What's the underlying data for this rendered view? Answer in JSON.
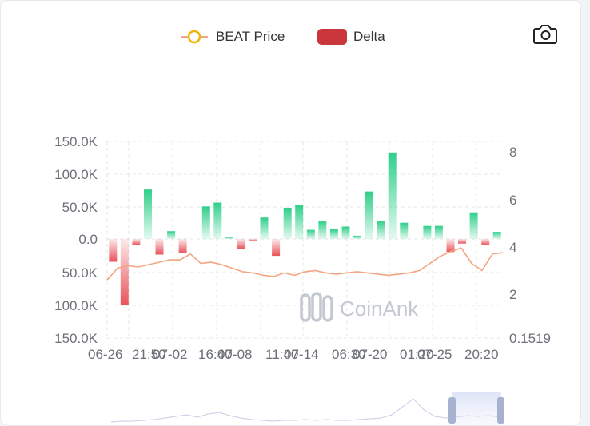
{
  "legend": {
    "price_label": "BEAT Price",
    "delta_label": "Delta"
  },
  "watermark": {
    "text": "CoinAnk"
  },
  "icons": {
    "camera": "camera-icon",
    "logo": "coinank-logo-icon"
  },
  "colors": {
    "price_line": "#f4a581",
    "price_marker": "#f0b400",
    "positive_bar": "#2fcf8a",
    "negative_bar": "#e8525a",
    "delta_legend": "#c9363c",
    "axis_text": "#6e7079",
    "grid": "#e3e6ea"
  },
  "chart_data": {
    "type": "bar",
    "title": "",
    "xlabel": "",
    "ylabel": "",
    "x_tick_labels": [
      "06-26",
      "21:50",
      "07-02",
      "16:40",
      "07-08",
      "11:40",
      "07-14",
      "06:30",
      "07-20",
      "01:20",
      "07-25",
      "20:20"
    ],
    "y_left": {
      "tick_labels": [
        "150.0K",
        "100.0K",
        "50.0K",
        "0.0",
        "50.0K",
        "100.0K",
        "150.0K"
      ],
      "ylim": [
        -150000,
        150000
      ]
    },
    "y_right": {
      "tick_labels": [
        "8",
        "6",
        "4",
        "2",
        "0.1519"
      ],
      "ylim": [
        0.1519,
        8.5
      ]
    },
    "series": [
      {
        "name": "Delta",
        "type": "bar",
        "values": [
          -35000,
          -102000,
          -9000,
          76000,
          -24000,
          12000,
          -22000,
          0,
          50000,
          56000,
          3000,
          -15000,
          -3000,
          33000,
          -26000,
          48000,
          52000,
          14000,
          28000,
          15000,
          19000,
          5000,
          73000,
          28000,
          133000,
          25000,
          0,
          20000,
          20000,
          -20000,
          -7000,
          41000,
          -9000,
          11000
        ]
      },
      {
        "name": "BEAT Price",
        "type": "line",
        "values": [
          2.6,
          3.1,
          3.2,
          3.15,
          3.25,
          3.35,
          3.45,
          3.45,
          3.7,
          3.3,
          3.35,
          3.25,
          3.1,
          2.95,
          2.9,
          2.8,
          2.75,
          2.9,
          2.8,
          2.95,
          3.0,
          2.9,
          2.85,
          2.9,
          2.95,
          2.9,
          2.85,
          2.8,
          2.85,
          2.9,
          3.0,
          3.3,
          3.6,
          3.8,
          3.95,
          3.3,
          3.0,
          3.7,
          3.75
        ]
      }
    ]
  }
}
